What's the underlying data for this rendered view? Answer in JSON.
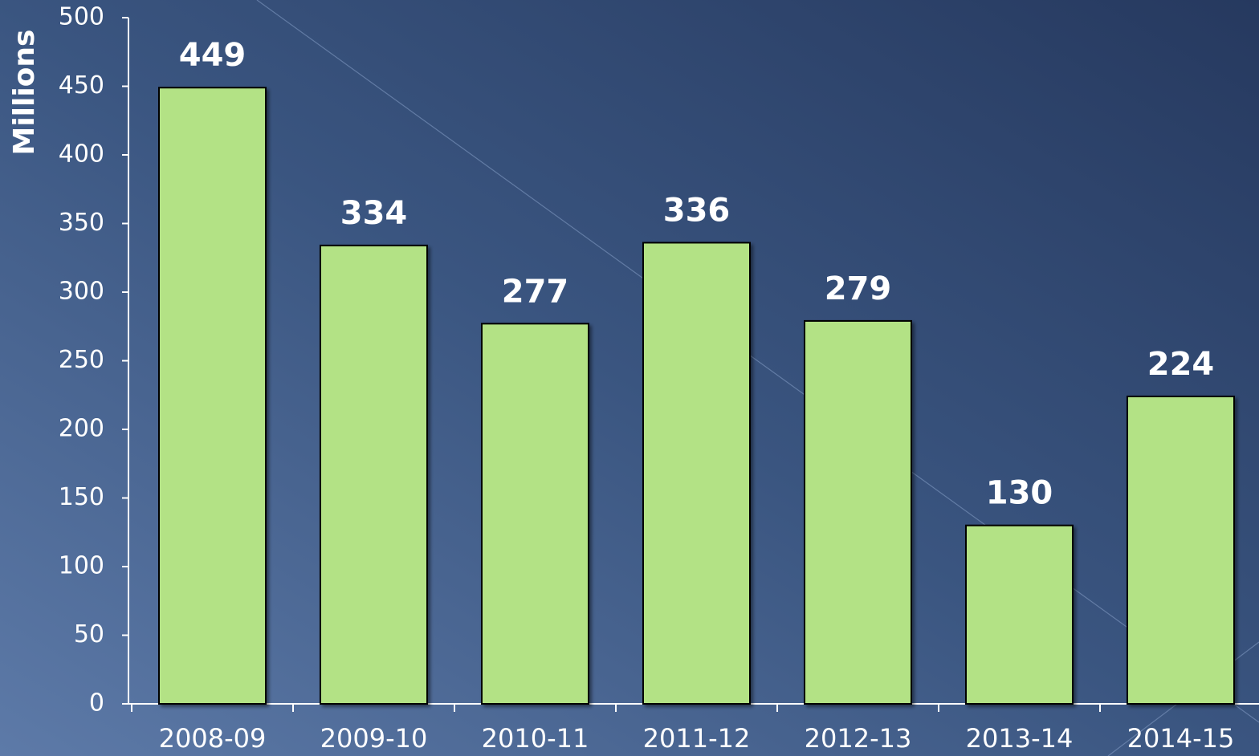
{
  "chart_data": {
    "type": "bar",
    "y_axis_label": "Millions",
    "categories": [
      "2008-09",
      "2009-10",
      "2010-11",
      "2011-12",
      "2012-13",
      "2013-14",
      "2014-15"
    ],
    "values": [
      449,
      334,
      277,
      336,
      279,
      130,
      224
    ],
    "color": "#b3e285",
    "ylim": [
      0,
      500
    ],
    "yticks": [
      0,
      50,
      100,
      150,
      200,
      250,
      300,
      350,
      400,
      450,
      500
    ],
    "grid": false
  }
}
